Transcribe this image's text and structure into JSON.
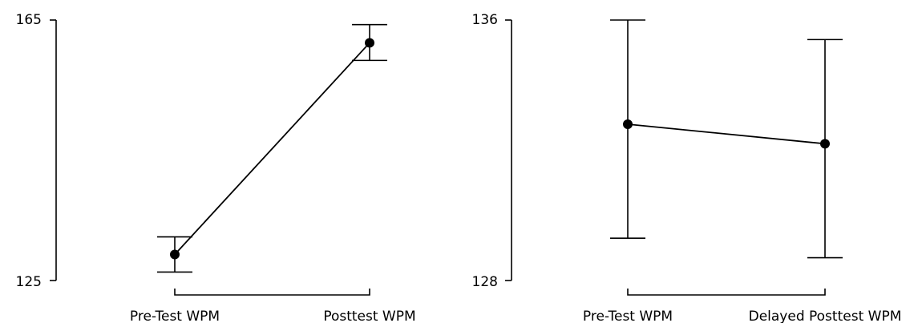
{
  "chart_data": [
    {
      "type": "line",
      "categories": [
        "Pre-Test WPM",
        "Posttest WPM"
      ],
      "values": [
        129.0,
        161.5
      ],
      "error_low": [
        126.3,
        158.8
      ],
      "error_high": [
        131.7,
        164.3
      ],
      "ylim": [
        125,
        165
      ],
      "yticks": [
        "125",
        "165"
      ],
      "title": "",
      "xlabel": "",
      "ylabel": "",
      "grid": false,
      "colors": {
        "line": "#000000",
        "marker": "#000000",
        "axis": "#000000"
      }
    },
    {
      "type": "line",
      "categories": [
        "Pre-Test WPM",
        "Delayed Posttest WPM"
      ],
      "values": [
        132.8,
        132.2
      ],
      "error_low": [
        129.3,
        128.7
      ],
      "error_high": [
        136.0,
        135.4
      ],
      "ylim": [
        128,
        136
      ],
      "yticks": [
        "128",
        "136"
      ],
      "title": "",
      "xlabel": "",
      "ylabel": "",
      "grid": false,
      "colors": {
        "line": "#000000",
        "marker": "#000000",
        "axis": "#000000"
      }
    }
  ]
}
